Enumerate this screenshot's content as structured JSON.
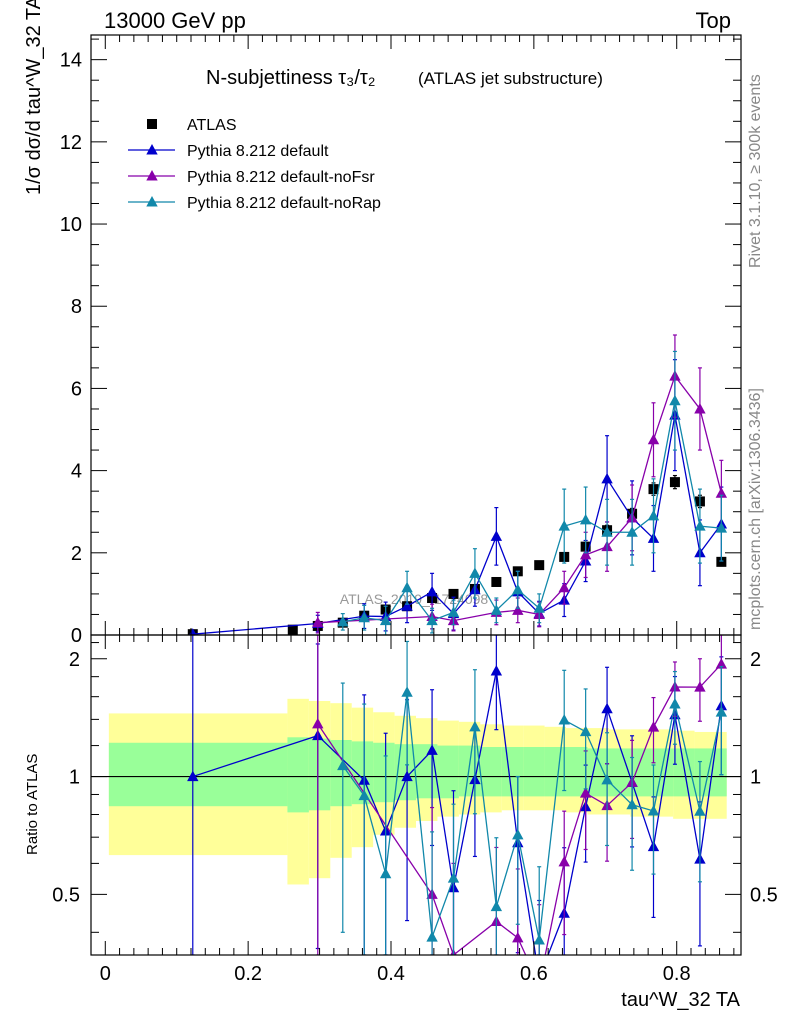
{
  "header": {
    "beam": "13000 GeV pp",
    "process": "Top"
  },
  "side_labels": {
    "rivet": "Rivet 3.1.10, ≥ 300k events",
    "mcplots": "mcplots.cern.ch [arXiv:1306.3436]"
  },
  "chart_data": {
    "type": "line",
    "title": "N-subjettiness τ₃/τ₂",
    "title_extra": "(ATLAS jet substructure)",
    "watermark": "ATLAS_2019_I1724098",
    "ylabel": "1/σ dσ/d tau^W_32 TA",
    "xlabel": "tau^W_32 TA",
    "ratio_ylabel": "Ratio to ATLAS",
    "xlim": [
      -0.02,
      0.89
    ],
    "ylim": [
      0,
      14.6
    ],
    "ratio_ylim": [
      0.35,
      2.3
    ],
    "x_ticks": [
      0,
      0.2,
      0.4,
      0.6,
      0.8
    ],
    "x_tick_labels": [
      "0",
      "0.2",
      "0.4",
      "0.6",
      "0.8"
    ],
    "y_ticks": [
      0,
      2,
      4,
      6,
      8,
      10,
      12,
      14
    ],
    "y_tick_labels": [
      "0",
      "2",
      "4",
      "6",
      "8",
      "10",
      "12",
      "14"
    ],
    "ratio_ticks": [
      0.5,
      1,
      2
    ],
    "ratio_tick_labels": [
      "0.5",
      "1",
      "2"
    ],
    "legend_position": "top-left",
    "x": [
      0.1225,
      0.2625,
      0.2975,
      0.3325,
      0.3625,
      0.3925,
      0.4225,
      0.4575,
      0.4875,
      0.5175,
      0.5475,
      0.5775,
      0.6075,
      0.6425,
      0.6725,
      0.7025,
      0.7375,
      0.7675,
      0.7975,
      0.8325,
      0.8625
    ],
    "band_edges": [
      0.005,
      0.255,
      0.285,
      0.315,
      0.345,
      0.375,
      0.405,
      0.435,
      0.465,
      0.495,
      0.525,
      0.555,
      0.585,
      0.615,
      0.645,
      0.675,
      0.705,
      0.735,
      0.765,
      0.795,
      0.825,
      0.87
    ],
    "band_yellow": [
      [
        0.63,
        1.45
      ],
      [
        0.53,
        1.58
      ],
      [
        0.55,
        1.56
      ],
      [
        0.62,
        1.54
      ],
      [
        0.66,
        1.5
      ],
      [
        0.71,
        1.46
      ],
      [
        0.74,
        1.43
      ],
      [
        0.77,
        1.41
      ],
      [
        0.79,
        1.39
      ],
      [
        0.8,
        1.38
      ],
      [
        0.81,
        1.36
      ],
      [
        0.82,
        1.35
      ],
      [
        0.82,
        1.35
      ],
      [
        0.82,
        1.34
      ],
      [
        0.81,
        1.33
      ],
      [
        0.8,
        1.33
      ],
      [
        0.8,
        1.32
      ],
      [
        0.79,
        1.32
      ],
      [
        0.79,
        1.32
      ],
      [
        0.78,
        1.31
      ],
      [
        0.78,
        1.3
      ]
    ],
    "band_green": [
      [
        0.84,
        1.22
      ],
      [
        0.81,
        1.26
      ],
      [
        0.82,
        1.25
      ],
      [
        0.84,
        1.24
      ],
      [
        0.85,
        1.23
      ],
      [
        0.86,
        1.22
      ],
      [
        0.87,
        1.21
      ],
      [
        0.88,
        1.21
      ],
      [
        0.88,
        1.2
      ],
      [
        0.89,
        1.2
      ],
      [
        0.89,
        1.19
      ],
      [
        0.89,
        1.19
      ],
      [
        0.89,
        1.19
      ],
      [
        0.89,
        1.19
      ],
      [
        0.89,
        1.19
      ],
      [
        0.89,
        1.18
      ],
      [
        0.89,
        1.18
      ],
      [
        0.89,
        1.18
      ],
      [
        0.89,
        1.18
      ],
      [
        0.89,
        1.18
      ],
      [
        0.89,
        1.18
      ]
    ],
    "series": [
      {
        "name": "ATLAS",
        "color": "#000000",
        "marker": "square",
        "values": [
          0.02,
          0.13,
          0.22,
          0.3,
          0.47,
          0.62,
          0.7,
          0.9,
          1.0,
          1.12,
          1.29,
          1.55,
          1.7,
          1.9,
          2.15,
          2.55,
          2.95,
          3.55,
          3.72,
          3.25,
          1.78
        ],
        "errors": [
          0.01,
          0.01,
          0.02,
          0.02,
          0.03,
          0.04,
          0.04,
          0.05,
          0.06,
          0.06,
          0.07,
          0.08,
          0.08,
          0.09,
          0.1,
          0.12,
          0.13,
          0.15,
          0.16,
          0.15,
          0.1
        ]
      },
      {
        "name": "Pythia 8.212 default",
        "color": "#0000cc",
        "marker": "triangle",
        "values": [
          0.02,
          null,
          0.28,
          null,
          0.46,
          0.45,
          0.7,
          1.05,
          0.52,
          1.1,
          2.4,
          1.05,
          0.52,
          0.85,
          1.8,
          3.8,
          2.85,
          2.35,
          5.35,
          2.0,
          2.7
        ],
        "errors": [
          0.03,
          null,
          0.2,
          null,
          0.3,
          0.35,
          0.4,
          0.45,
          0.4,
          0.4,
          0.7,
          0.5,
          0.3,
          0.4,
          0.5,
          1.05,
          0.9,
          0.8,
          1.35,
          0.8,
          0.9
        ]
      },
      {
        "name": "Pythia 8.212 default-noFsr",
        "color": "#8800aa",
        "marker": "triangle",
        "values": [
          null,
          null,
          0.3,
          null,
          null,
          null,
          null,
          0.45,
          0.35,
          null,
          0.55,
          0.6,
          0.5,
          1.15,
          1.95,
          2.15,
          2.85,
          4.75,
          6.3,
          5.5,
          3.45
        ],
        "errors": [
          null,
          null,
          0.25,
          null,
          null,
          null,
          null,
          0.3,
          0.25,
          null,
          0.3,
          0.3,
          0.3,
          0.4,
          0.55,
          0.6,
          0.8,
          0.9,
          1.0,
          1.0,
          0.8
        ]
      },
      {
        "name": "Pythia 8.212 default-noRap",
        "color": "#1188aa",
        "marker": "triangle",
        "values": [
          null,
          null,
          null,
          0.32,
          0.42,
          0.35,
          1.15,
          0.35,
          0.55,
          1.5,
          0.6,
          1.1,
          0.65,
          2.65,
          2.8,
          2.5,
          2.5,
          2.9,
          5.7,
          2.65,
          2.6
        ],
        "errors": [
          null,
          null,
          null,
          0.2,
          0.3,
          0.35,
          0.4,
          0.3,
          0.3,
          0.6,
          0.3,
          0.45,
          0.35,
          0.9,
          0.8,
          0.8,
          0.8,
          0.9,
          1.2,
          0.9,
          0.8
        ]
      }
    ]
  }
}
